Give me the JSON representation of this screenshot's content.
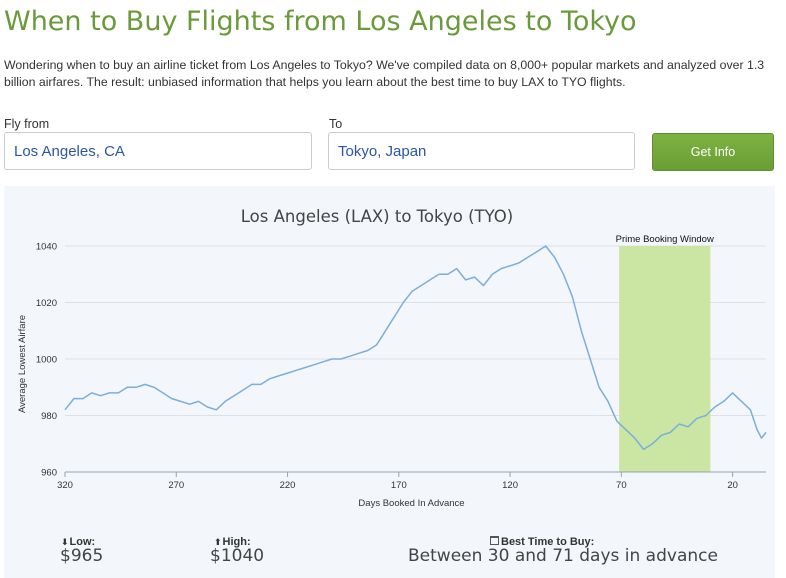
{
  "page": {
    "title": "When to Buy Flights from Los Angeles to Tokyo",
    "intro": "Wondering when to buy an airline ticket from Los Angeles to Tokyo? We've compiled data on 8,000+ popular markets and analyzed over 1.3 billion airfares. The result: unbiased information that helps you learn about the best time to buy LAX to TYO flights."
  },
  "search": {
    "from_label": "Fly from",
    "from_value": "Los Angeles, CA",
    "to_label": "To",
    "to_value": "Tokyo, Japan",
    "button_label": "Get Info"
  },
  "colors": {
    "title": "#6a9a3a",
    "line": "#7aafdc",
    "window": "#cbe6a3",
    "button": "#74a93c"
  },
  "chart_data": {
    "type": "line",
    "title": "Los Angeles (LAX) to Tokyo (TYO)",
    "xlabel": "Days Booked In Advance",
    "ylabel": "Average Lowest Airfare",
    "xlim": [
      320,
      5
    ],
    "ylim": [
      960,
      1040
    ],
    "x_reversed": true,
    "x_ticks": [
      320,
      270,
      220,
      170,
      120,
      70,
      20
    ],
    "y_ticks": [
      960,
      980,
      1000,
      1020,
      1040
    ],
    "grid": "horizontal",
    "annotation": {
      "label": "Prime Booking Window",
      "x_start": 71,
      "x_end": 30
    },
    "series": [
      {
        "x": [
          320,
          316,
          312,
          308,
          304,
          300,
          296,
          292,
          288,
          284,
          280,
          276,
          272,
          268,
          264,
          260,
          256,
          252,
          248,
          244,
          240,
          236,
          232,
          228,
          224,
          220,
          216,
          212,
          208,
          204,
          200,
          196,
          192,
          188,
          184,
          180,
          176,
          172,
          168,
          164,
          160,
          156,
          152,
          148,
          144,
          140,
          136,
          132,
          128,
          124,
          120,
          116,
          112,
          108,
          104,
          100,
          96,
          92,
          88,
          84,
          80,
          76,
          72,
          68,
          64,
          60,
          56,
          52,
          48,
          44,
          40,
          36,
          32,
          28,
          24,
          20,
          16,
          12,
          9,
          7,
          5
        ],
        "values": [
          982,
          986,
          986,
          988,
          987,
          988,
          988,
          990,
          990,
          991,
          990,
          988,
          986,
          985,
          984,
          985,
          983,
          982,
          985,
          987,
          989,
          991,
          991,
          993,
          994,
          995,
          996,
          997,
          998,
          999,
          1000,
          1000,
          1001,
          1002,
          1003,
          1005,
          1010,
          1015,
          1020,
          1024,
          1026,
          1028,
          1030,
          1030,
          1032,
          1028,
          1029,
          1026,
          1030,
          1032,
          1033,
          1034,
          1036,
          1038,
          1040,
          1036,
          1030,
          1022,
          1010,
          1000,
          990,
          985,
          978,
          975,
          972,
          968,
          970,
          973,
          974,
          977,
          976,
          979,
          980,
          983,
          985,
          988,
          985,
          982,
          975,
          972,
          974
        ]
      }
    ]
  },
  "stats": {
    "low_label": "Low:",
    "low_value": "$965",
    "high_label": "High:",
    "high_value": "$1040",
    "best_label": "Best Time to Buy:",
    "best_value": "Between 30 and 71 days in advance",
    "low_icon": "down-arrow-icon",
    "high_icon": "up-arrow-icon",
    "best_icon": "calendar-icon"
  }
}
